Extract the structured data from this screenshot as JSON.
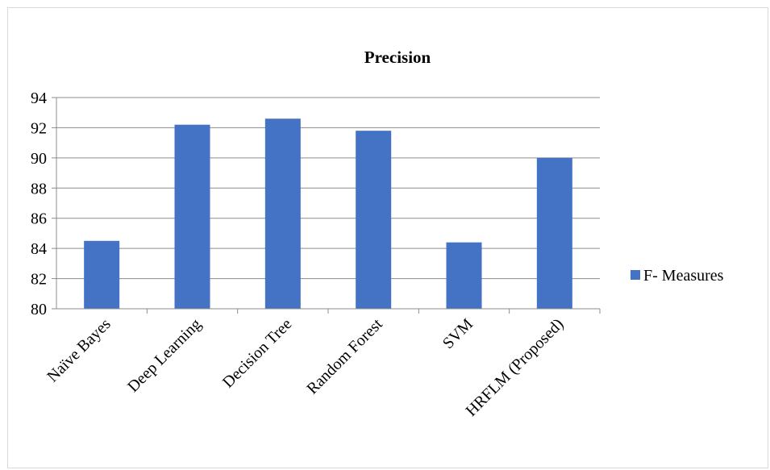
{
  "chart_data": {
    "type": "bar",
    "title": "Precision",
    "categories": [
      "Naïve Bayes",
      "Deep Learning",
      "Decision Tree",
      "Random Forest",
      "SVM",
      "HRFLM (Proposed)"
    ],
    "series": [
      {
        "name": "F- Measures",
        "values": [
          84.5,
          92.2,
          92.6,
          91.8,
          84.4,
          90.0
        ],
        "color": "#4472c4"
      }
    ],
    "ylim": [
      80,
      94
    ],
    "yticks": [
      80,
      82,
      84,
      86,
      88,
      90,
      92,
      94
    ],
    "grid": true,
    "legend": "right"
  }
}
